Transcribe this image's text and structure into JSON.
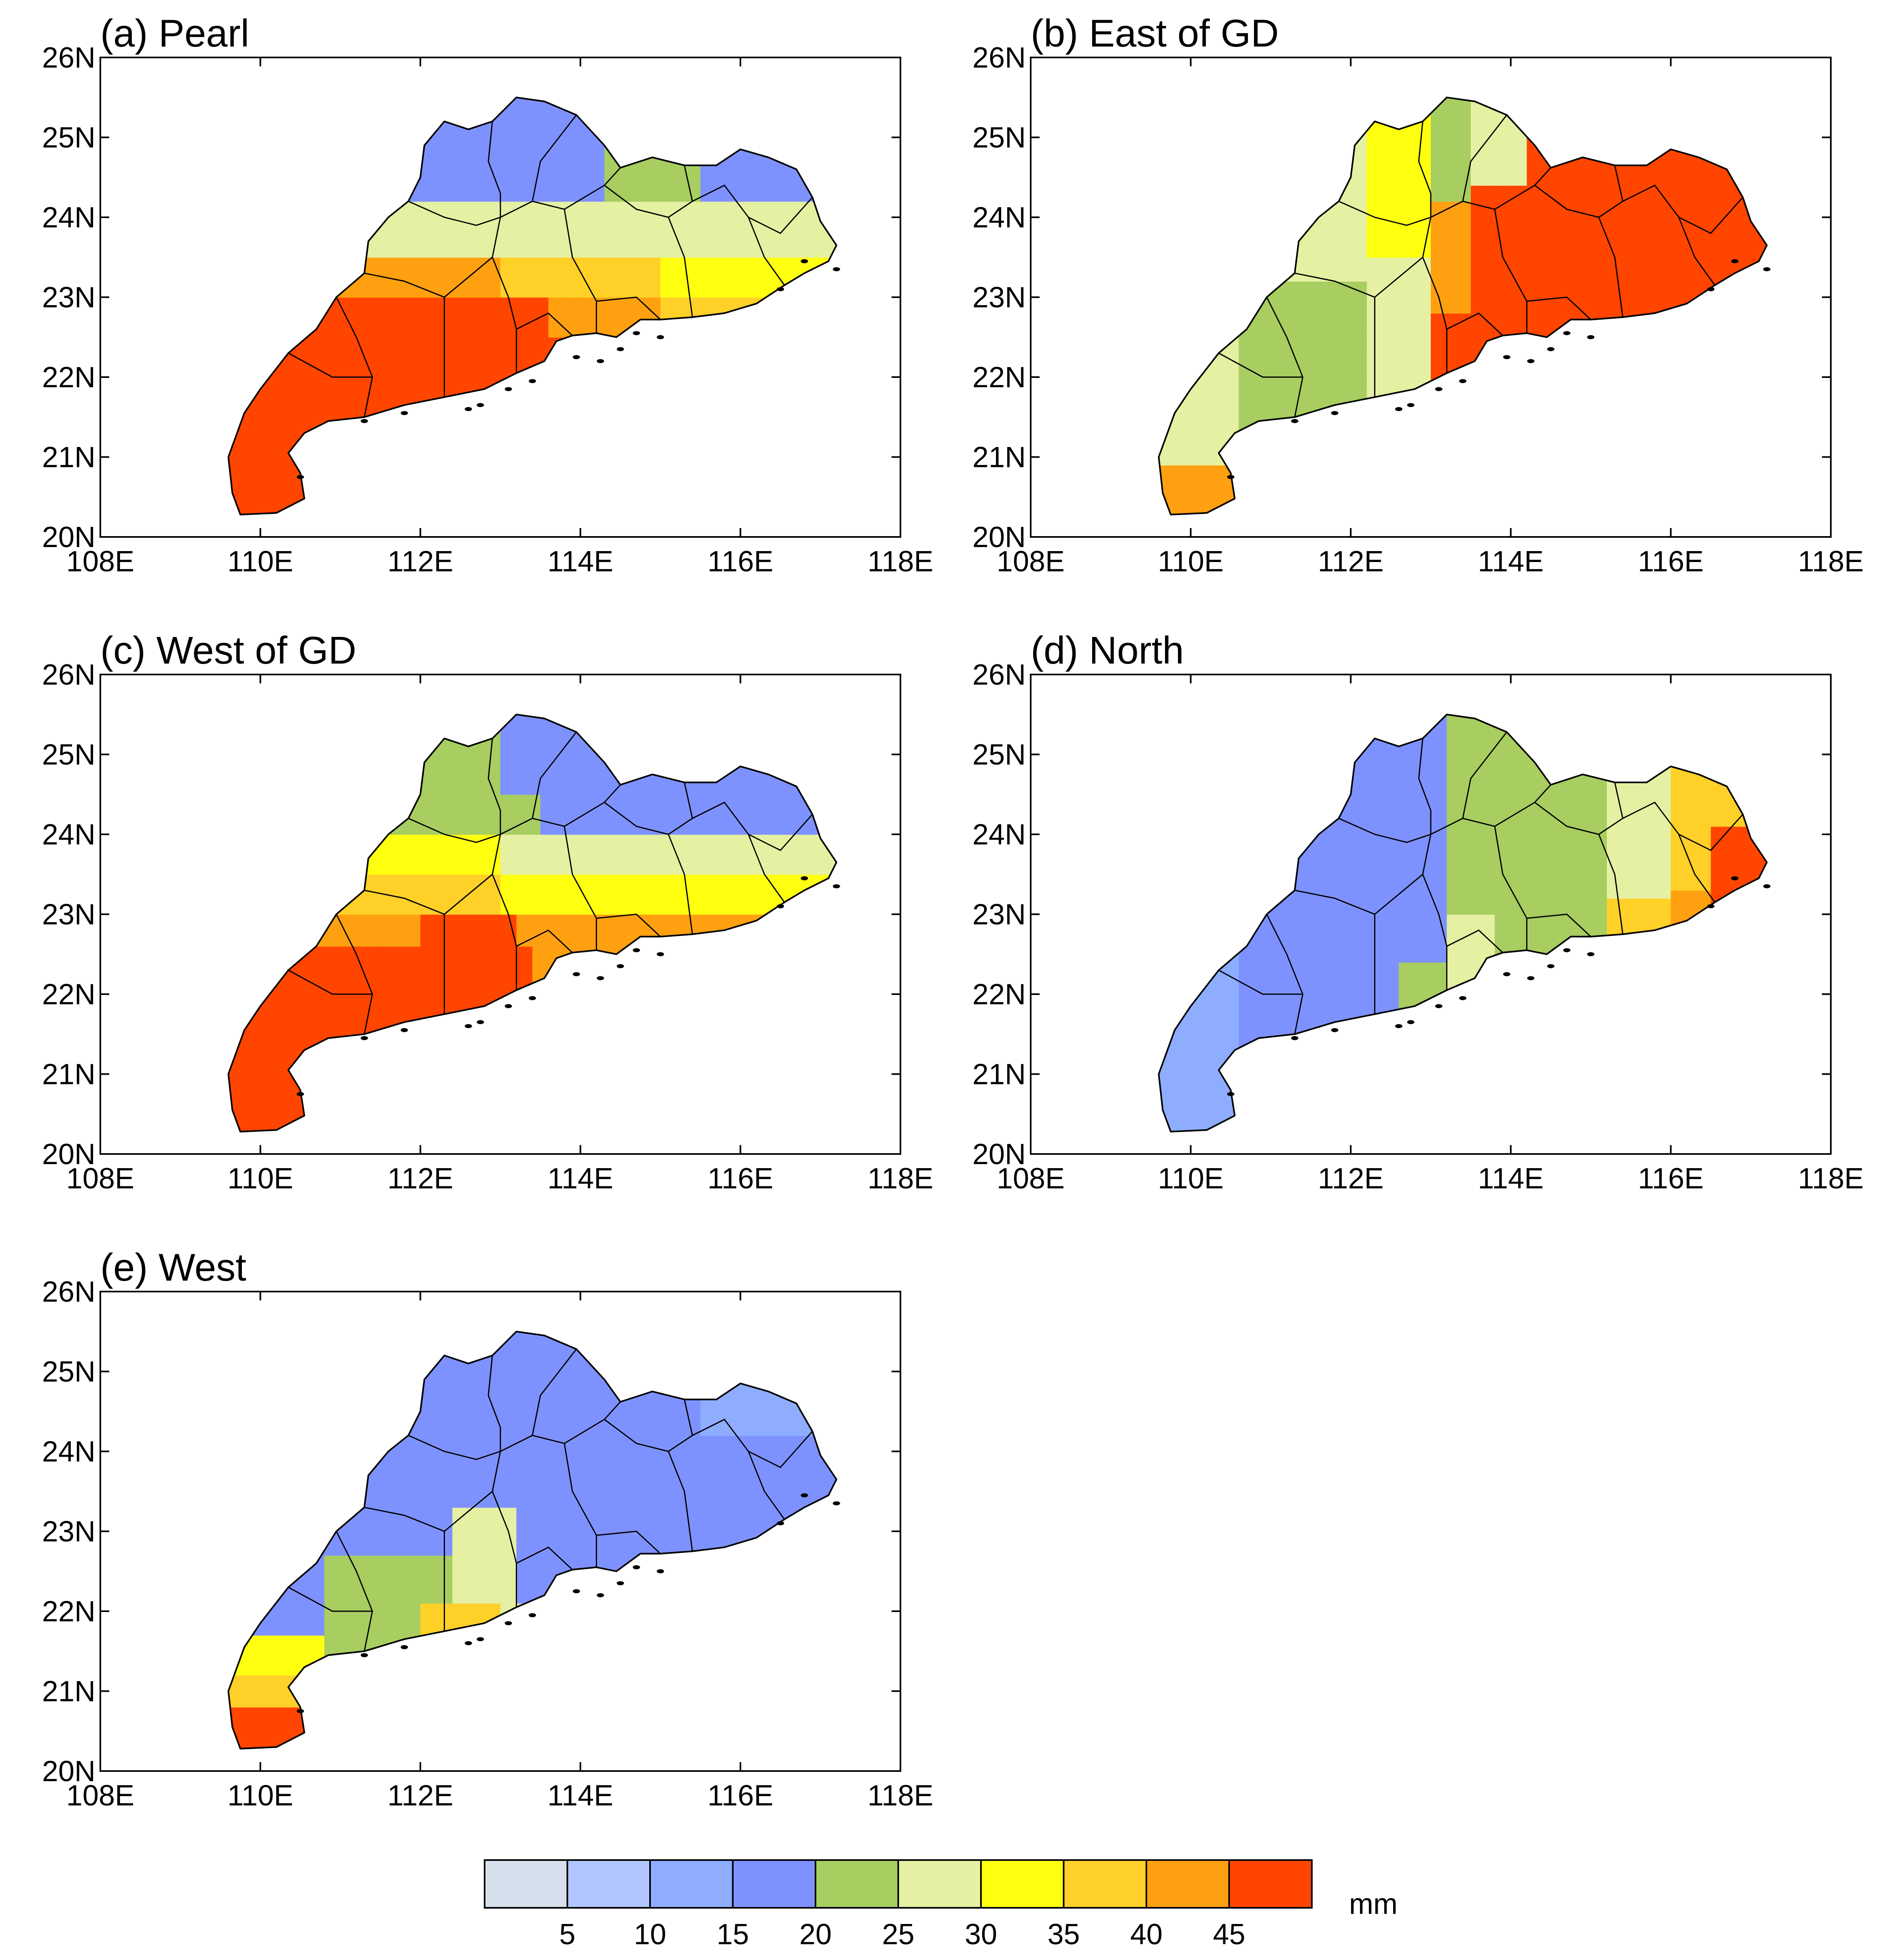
{
  "figure": {
    "panels": [
      {
        "id": "a",
        "title": "(a) Pearl",
        "pattern": "pearl"
      },
      {
        "id": "b",
        "title": "(b) East of GD",
        "pattern": "east"
      },
      {
        "id": "c",
        "title": "(c) West of GD",
        "pattern": "westgd"
      },
      {
        "id": "d",
        "title": "(d) North",
        "pattern": "north"
      },
      {
        "id": "e",
        "title": "(e) West",
        "pattern": "west"
      }
    ],
    "axes": {
      "lon_ticks": [
        "108E",
        "110E",
        "112E",
        "114E",
        "116E",
        "118E"
      ],
      "lat_ticks": [
        "20N",
        "21N",
        "22N",
        "23N",
        "24N",
        "25N",
        "26N"
      ],
      "lon_range": [
        108,
        118
      ],
      "lat_range": [
        20,
        26
      ]
    },
    "colorbar": {
      "unit": "mm",
      "labels": [
        "5",
        "10",
        "15",
        "20",
        "25",
        "30",
        "35",
        "40",
        "45"
      ],
      "colors": [
        "#d6e0ec",
        "#b2c5ff",
        "#8eadff",
        "#7e92ff",
        "#a8cd60",
        "#e5f0a2",
        "#ffff10",
        "#ffd028",
        "#ffa010",
        "#ff4500"
      ]
    }
  }
}
